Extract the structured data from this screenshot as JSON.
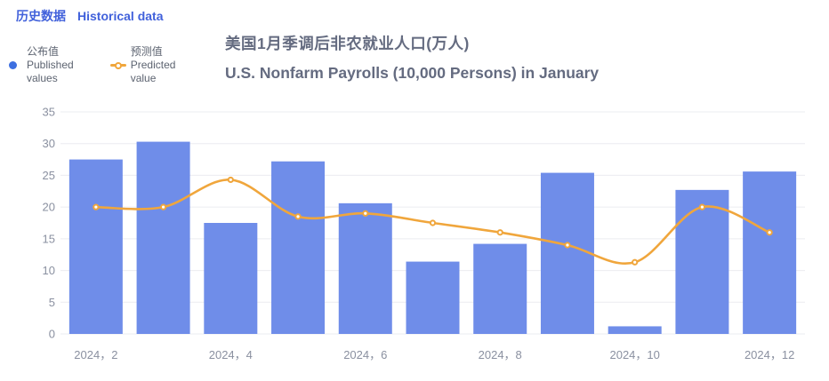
{
  "header": {
    "tab_zh": "历史数据",
    "tab_en": "Historical data"
  },
  "legend": {
    "published": {
      "zh": "公布值",
      "en_line1": "Published",
      "en_line2": "values"
    },
    "predicted": {
      "zh": "预测值",
      "en_line1": "Predicted",
      "en_line2": "value"
    }
  },
  "colors": {
    "bar": "#6F8DE9",
    "line": "#F0A63C",
    "published_legend_dot": "#3D6FE0",
    "grid": "#EBECF0",
    "axis_text": "#8A90A0",
    "title_text": "#646B80",
    "header_text": "#4161DB",
    "legend_text": "#5C6370"
  },
  "chart_data": {
    "type": "bar",
    "title_zh": "美国1月季调后非农就业人口(万人)",
    "title_en": "U.S. Nonfarm Payrolls (10,000 Persons) in January",
    "categories_count": 11,
    "x_labels": [
      {
        "index": 0,
        "label": "2024，2"
      },
      {
        "index": 2,
        "label": "2024，4"
      },
      {
        "index": 4,
        "label": "2024，6"
      },
      {
        "index": 6,
        "label": "2024，8"
      },
      {
        "index": 8,
        "label": "2024，10"
      },
      {
        "index": 10,
        "label": "2024，12"
      }
    ],
    "series": [
      {
        "name": "公布值 Published values",
        "type": "bar",
        "color": "#6F8DE9",
        "values": [
          27.5,
          30.3,
          17.5,
          27.2,
          20.6,
          11.4,
          14.2,
          25.4,
          1.2,
          22.7,
          25.6
        ]
      },
      {
        "name": "预测值 Predicted value",
        "type": "line",
        "smooth": true,
        "color": "#F0A63C",
        "values": [
          20,
          20,
          24.3,
          18.5,
          19,
          17.5,
          16,
          14,
          11.3,
          20,
          16
        ]
      }
    ],
    "ylim": [
      0,
      35
    ],
    "y_ticks": [
      0,
      5,
      10,
      15,
      20,
      25,
      30,
      35
    ],
    "grid": true,
    "legend_position": "top-left"
  }
}
